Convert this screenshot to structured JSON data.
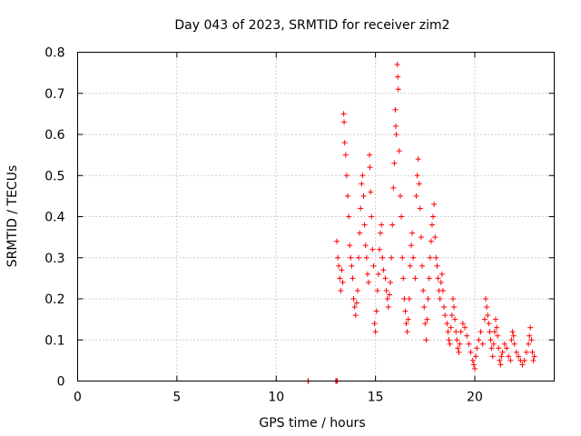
{
  "chart_data": {
    "type": "scatter",
    "title": "Day 043 of 2023, SRMTID for receiver zim2",
    "xlabel": "GPS time / hours",
    "ylabel": "SRMTID / TECUs",
    "xlim": [
      0,
      24
    ],
    "ylim": [
      0,
      0.8
    ],
    "xticks": [
      "0",
      "5",
      "10",
      "15",
      "20"
    ],
    "yticks": [
      "0",
      "0.1",
      "0.2",
      "0.3",
      "0.4",
      "0.5",
      "0.6",
      "0.7",
      "0.8"
    ],
    "grid": true,
    "marker": "+",
    "color": "#ff0000",
    "series": [
      {
        "name": "SRMTID",
        "points": [
          [
            11.6,
            0.0
          ],
          [
            11.62,
            0.0
          ],
          [
            13.0,
            0.0
          ],
          [
            13.05,
            0.0
          ],
          [
            13.08,
            0.0
          ],
          [
            13.05,
            0.34
          ],
          [
            13.1,
            0.3
          ],
          [
            13.15,
            0.28
          ],
          [
            13.2,
            0.25
          ],
          [
            13.25,
            0.22
          ],
          [
            13.3,
            0.27
          ],
          [
            13.35,
            0.24
          ],
          [
            13.4,
            0.65
          ],
          [
            13.42,
            0.63
          ],
          [
            13.45,
            0.58
          ],
          [
            13.5,
            0.55
          ],
          [
            13.55,
            0.5
          ],
          [
            13.6,
            0.45
          ],
          [
            13.65,
            0.4
          ],
          [
            13.7,
            0.33
          ],
          [
            13.75,
            0.3
          ],
          [
            13.8,
            0.28
          ],
          [
            13.85,
            0.25
          ],
          [
            13.9,
            0.2
          ],
          [
            13.95,
            0.18
          ],
          [
            14.0,
            0.16
          ],
          [
            14.05,
            0.19
          ],
          [
            14.1,
            0.22
          ],
          [
            14.15,
            0.3
          ],
          [
            14.2,
            0.36
          ],
          [
            14.25,
            0.42
          ],
          [
            14.3,
            0.48
          ],
          [
            14.35,
            0.5
          ],
          [
            14.4,
            0.45
          ],
          [
            14.45,
            0.38
          ],
          [
            14.5,
            0.33
          ],
          [
            14.55,
            0.3
          ],
          [
            14.6,
            0.26
          ],
          [
            14.65,
            0.24
          ],
          [
            14.7,
            0.55
          ],
          [
            14.72,
            0.52
          ],
          [
            14.75,
            0.46
          ],
          [
            14.8,
            0.4
          ],
          [
            14.85,
            0.32
          ],
          [
            14.9,
            0.28
          ],
          [
            14.95,
            0.14
          ],
          [
            15.0,
            0.12
          ],
          [
            15.05,
            0.17
          ],
          [
            15.1,
            0.22
          ],
          [
            15.15,
            0.26
          ],
          [
            15.2,
            0.32
          ],
          [
            15.25,
            0.36
          ],
          [
            15.3,
            0.38
          ],
          [
            15.35,
            0.3
          ],
          [
            15.4,
            0.27
          ],
          [
            15.5,
            0.25
          ],
          [
            15.55,
            0.22
          ],
          [
            15.6,
            0.2
          ],
          [
            15.65,
            0.18
          ],
          [
            15.7,
            0.21
          ],
          [
            15.75,
            0.24
          ],
          [
            15.8,
            0.3
          ],
          [
            15.85,
            0.38
          ],
          [
            15.9,
            0.47
          ],
          [
            15.95,
            0.53
          ],
          [
            16.0,
            0.66
          ],
          [
            16.02,
            0.62
          ],
          [
            16.05,
            0.6
          ],
          [
            16.1,
            0.77
          ],
          [
            16.12,
            0.74
          ],
          [
            16.15,
            0.71
          ],
          [
            16.2,
            0.56
          ],
          [
            16.25,
            0.45
          ],
          [
            16.3,
            0.4
          ],
          [
            16.35,
            0.3
          ],
          [
            16.4,
            0.25
          ],
          [
            16.45,
            0.2
          ],
          [
            16.5,
            0.17
          ],
          [
            16.55,
            0.14
          ],
          [
            16.6,
            0.12
          ],
          [
            16.65,
            0.15
          ],
          [
            16.7,
            0.2
          ],
          [
            16.75,
            0.28
          ],
          [
            16.8,
            0.33
          ],
          [
            16.85,
            0.36
          ],
          [
            16.9,
            0.3
          ],
          [
            17.0,
            0.25
          ],
          [
            17.05,
            0.45
          ],
          [
            17.1,
            0.5
          ],
          [
            17.15,
            0.54
          ],
          [
            17.2,
            0.48
          ],
          [
            17.25,
            0.42
          ],
          [
            17.3,
            0.35
          ],
          [
            17.35,
            0.28
          ],
          [
            17.4,
            0.22
          ],
          [
            17.45,
            0.18
          ],
          [
            17.5,
            0.14
          ],
          [
            17.55,
            0.1
          ],
          [
            17.6,
            0.15
          ],
          [
            17.65,
            0.2
          ],
          [
            17.7,
            0.25
          ],
          [
            17.75,
            0.3
          ],
          [
            17.8,
            0.34
          ],
          [
            17.85,
            0.38
          ],
          [
            17.9,
            0.4
          ],
          [
            17.95,
            0.43
          ],
          [
            18.0,
            0.35
          ],
          [
            18.05,
            0.3
          ],
          [
            18.1,
            0.28
          ],
          [
            18.15,
            0.25
          ],
          [
            18.2,
            0.22
          ],
          [
            18.25,
            0.2
          ],
          [
            18.3,
            0.24
          ],
          [
            18.35,
            0.26
          ],
          [
            18.4,
            0.22
          ],
          [
            18.45,
            0.18
          ],
          [
            18.5,
            0.16
          ],
          [
            18.6,
            0.14
          ],
          [
            18.65,
            0.12
          ],
          [
            18.7,
            0.1
          ],
          [
            18.75,
            0.09
          ],
          [
            18.8,
            0.13
          ],
          [
            18.85,
            0.16
          ],
          [
            18.9,
            0.2
          ],
          [
            18.95,
            0.18
          ],
          [
            19.0,
            0.15
          ],
          [
            19.05,
            0.12
          ],
          [
            19.1,
            0.1
          ],
          [
            19.15,
            0.08
          ],
          [
            19.2,
            0.07
          ],
          [
            19.25,
            0.09
          ],
          [
            19.3,
            0.12
          ],
          [
            19.4,
            0.14
          ],
          [
            19.5,
            0.13
          ],
          [
            19.6,
            0.11
          ],
          [
            19.7,
            0.09
          ],
          [
            19.8,
            0.07
          ],
          [
            19.9,
            0.05
          ],
          [
            19.95,
            0.04
          ],
          [
            20.0,
            0.03
          ],
          [
            20.05,
            0.06
          ],
          [
            20.1,
            0.08
          ],
          [
            20.2,
            0.1
          ],
          [
            20.3,
            0.12
          ],
          [
            20.4,
            0.09
          ],
          [
            20.5,
            0.15
          ],
          [
            20.55,
            0.2
          ],
          [
            20.6,
            0.18
          ],
          [
            20.65,
            0.16
          ],
          [
            20.7,
            0.14
          ],
          [
            20.75,
            0.12
          ],
          [
            20.8,
            0.1
          ],
          [
            20.85,
            0.08
          ],
          [
            20.9,
            0.06
          ],
          [
            20.95,
            0.09
          ],
          [
            21.0,
            0.12
          ],
          [
            21.05,
            0.15
          ],
          [
            21.1,
            0.13
          ],
          [
            21.15,
            0.11
          ],
          [
            21.2,
            0.08
          ],
          [
            21.25,
            0.05
          ],
          [
            21.3,
            0.04
          ],
          [
            21.35,
            0.06
          ],
          [
            21.4,
            0.07
          ],
          [
            21.5,
            0.09
          ],
          [
            21.6,
            0.08
          ],
          [
            21.7,
            0.06
          ],
          [
            21.8,
            0.05
          ],
          [
            21.85,
            0.1
          ],
          [
            21.9,
            0.12
          ],
          [
            21.95,
            0.11
          ],
          [
            22.0,
            0.09
          ],
          [
            22.1,
            0.07
          ],
          [
            22.2,
            0.06
          ],
          [
            22.3,
            0.05
          ],
          [
            22.4,
            0.04
          ],
          [
            22.5,
            0.05
          ],
          [
            22.6,
            0.07
          ],
          [
            22.7,
            0.09
          ],
          [
            22.75,
            0.11
          ],
          [
            22.8,
            0.13
          ],
          [
            22.85,
            0.1
          ],
          [
            22.9,
            0.07
          ],
          [
            22.95,
            0.05
          ],
          [
            23.0,
            0.06
          ]
        ]
      }
    ]
  }
}
